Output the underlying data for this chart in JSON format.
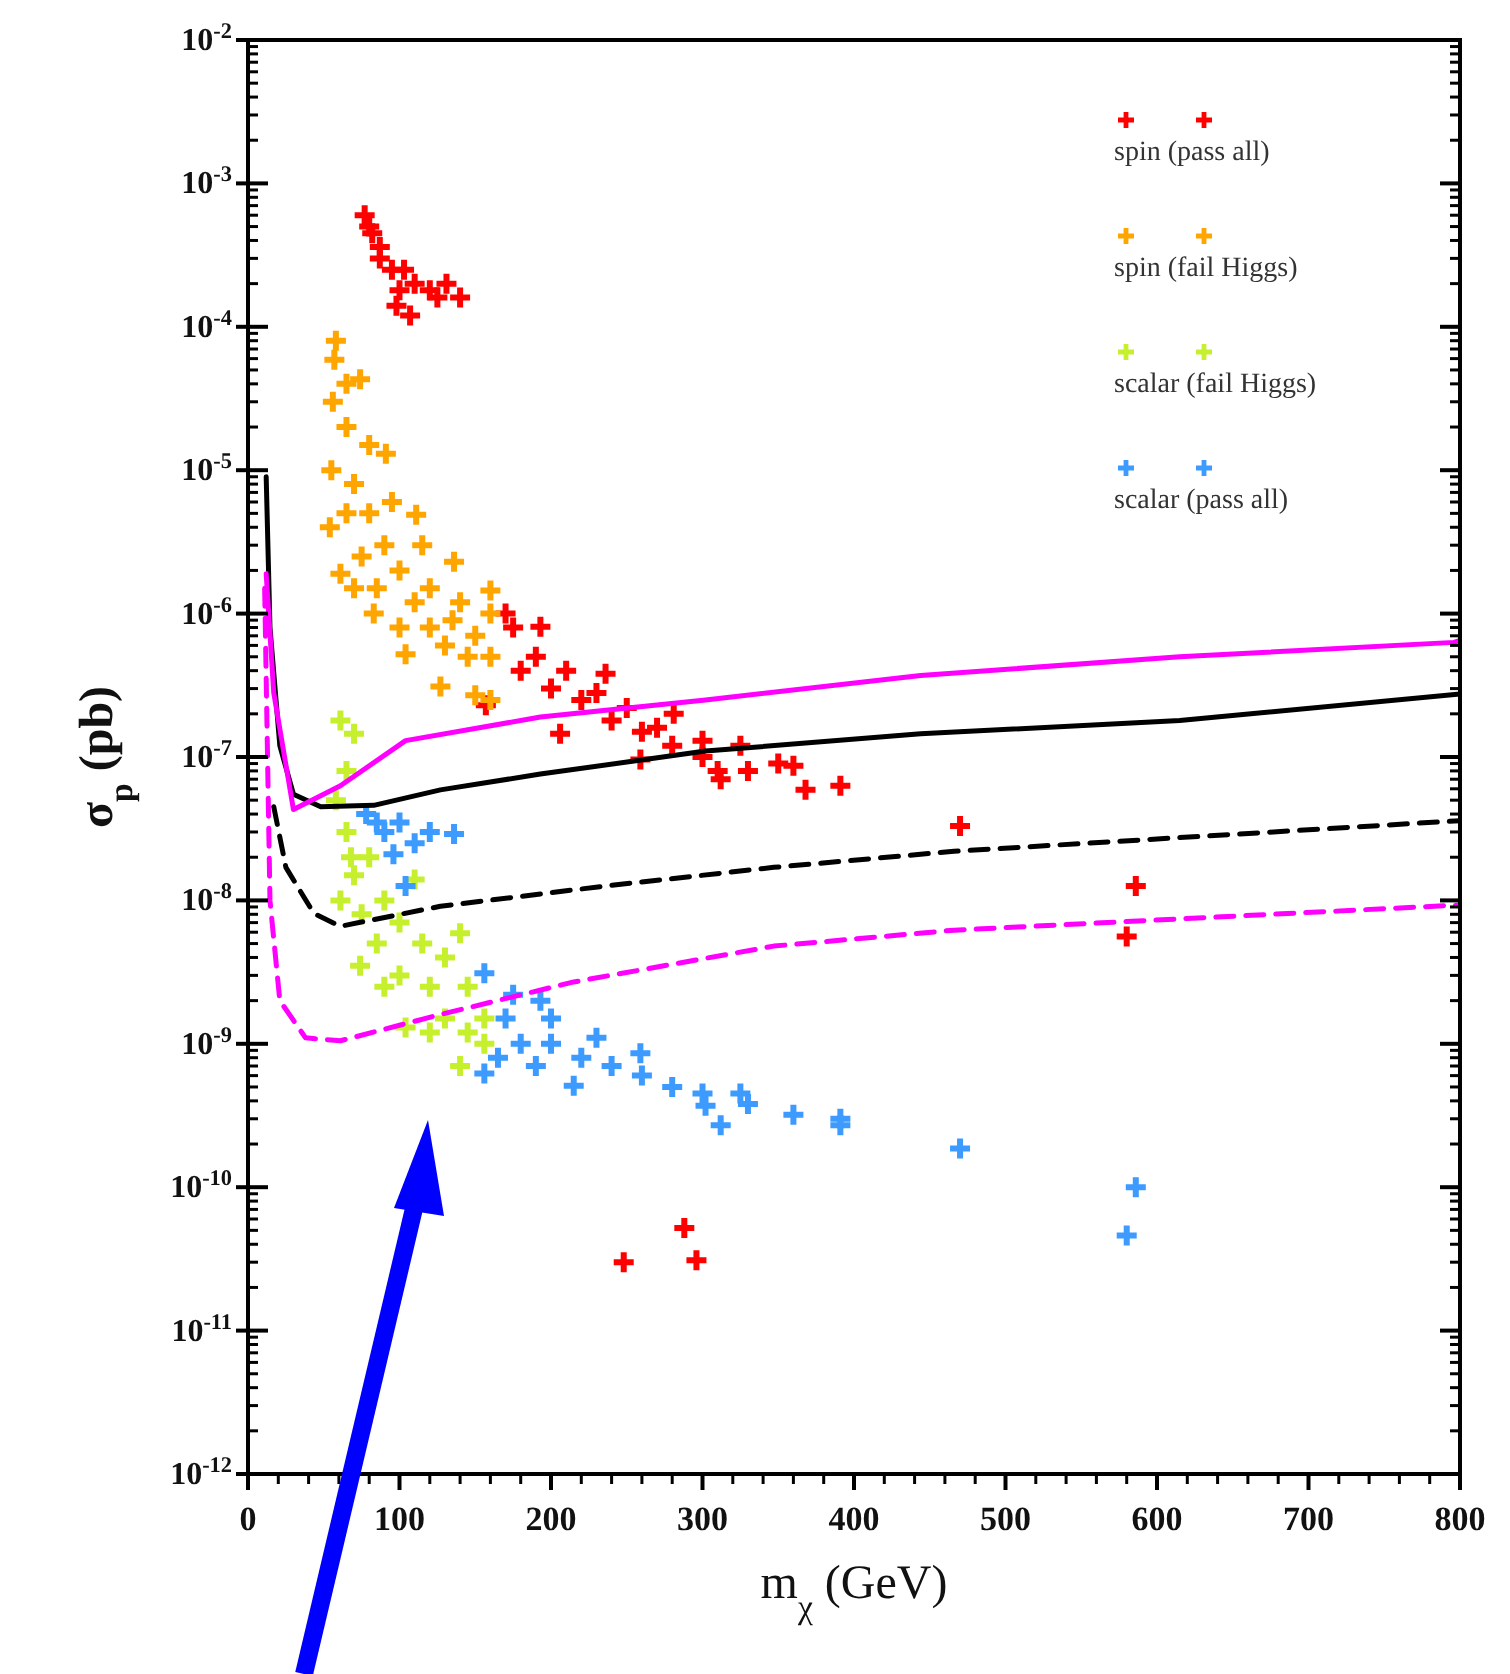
{
  "chart_data": {
    "type": "scatter",
    "xlabel": "m$_{χ}$ (GeV)",
    "ylabel": "σ$_{p}$ (pb)",
    "log": "y",
    "grid": false,
    "legend": "top right",
    "xlim": [
      0,
      800
    ],
    "xticks": [
      0,
      100,
      200,
      300,
      400,
      500,
      600,
      700,
      800
    ],
    "ylim": [
      1e-12,
      0.01
    ],
    "yticks": [
      {
        "value": 1e-12,
        "label": "10$^{-12}$"
      },
      {
        "value": 1e-11,
        "label": "10$^{-11}$"
      },
      {
        "value": 1e-10,
        "label": "10$^{-10}$"
      },
      {
        "value": 1e-09,
        "label": "10$^{-9}$"
      },
      {
        "value": 1e-08,
        "label": "10$^{-8}$"
      },
      {
        "value": 1e-07,
        "label": "10$^{-7}$"
      },
      {
        "value": 1e-06,
        "label": "10$^{-6}$"
      },
      {
        "value": 1e-05,
        "label": "10$^{-5}$"
      },
      {
        "value": 0.0001,
        "label": "10$^{-4}$"
      },
      {
        "value": 0.001,
        "label": "10$^{-3}$"
      },
      {
        "value": 0.01,
        "label": "10$^{-2}$"
      }
    ],
    "series": [
      {
        "name": "spin (pass all)",
        "marker": "cross",
        "color": "#ff0000",
        "x": [
          77,
          80,
          87,
          103,
          140,
          131,
          107,
          98,
          87,
          95,
          110,
          120,
          100,
          82,
          125,
          193,
          236,
          281,
          325,
          360,
          391,
          368,
          312,
          259,
          206,
          157,
          175,
          180,
          200,
          220,
          240,
          260,
          280,
          300,
          330,
          190,
          210,
          230,
          250,
          270,
          300,
          350,
          170,
          310,
          470,
          586,
          580,
          248,
          288,
          296
        ],
        "values": [
          0.0006,
          0.0005,
          0.00036,
          0.00025,
          0.00016,
          0.0002,
          0.00012,
          0.00014,
          0.0003,
          0.00025,
          0.0002,
          0.00018,
          0.00018,
          0.00045,
          0.00016,
          8.1e-07,
          3.8e-07,
          2e-07,
          1.2e-07,
          8.7e-08,
          6.3e-08,
          5.9e-08,
          7e-08,
          9.6e-08,
          1.45e-07,
          2.3e-07,
          8e-07,
          4e-07,
          3e-07,
          2.5e-07,
          1.8e-07,
          1.5e-07,
          1.2e-07,
          1e-07,
          8e-08,
          5e-07,
          4e-07,
          2.8e-07,
          2.2e-07,
          1.6e-07,
          1.3e-07,
          9e-08,
          1e-06,
          8e-08,
          3.3e-08,
          1.26e-08,
          5.6e-09,
          3e-11,
          5.2e-11,
          3.1e-11
        ]
      },
      {
        "name": "spin (fail Higgs)",
        "marker": "cross",
        "color": "#ffa500",
        "x": [
          58,
          57,
          56,
          55,
          54,
          61,
          70,
          83,
          104,
          127,
          150,
          160,
          160,
          160,
          160,
          136,
          111,
          91,
          74,
          65,
          70,
          80,
          90,
          100,
          110,
          120,
          130,
          140,
          145,
          75,
          65,
          85,
          100,
          120,
          95,
          80,
          65,
          115,
          135,
          150
        ],
        "values": [
          8e-05,
          5.9e-05,
          3e-05,
          1e-05,
          4e-06,
          1.9e-06,
          1.5e-06,
          1e-06,
          5.2e-07,
          3.1e-07,
          2.7e-07,
          2.5e-07,
          5e-07,
          1e-06,
          1.45e-06,
          2.3e-06,
          4.9e-06,
          1.3e-05,
          4.3e-05,
          2e-05,
          8e-06,
          5e-06,
          3e-06,
          2e-06,
          1.2e-06,
          8e-07,
          6e-07,
          1.2e-06,
          5e-07,
          2.5e-06,
          5e-06,
          1.5e-06,
          8e-07,
          1.5e-06,
          6e-06,
          1.5e-05,
          4e-05,
          3e-06,
          9e-07,
          7e-07
        ]
      },
      {
        "name": "scalar (fail Higgs)",
        "marker": "cross",
        "color": "#c6f02e",
        "x": [
          61,
          58,
          61,
          74,
          104,
          140,
          70,
          110,
          140,
          156,
          156,
          65,
          65,
          70,
          80,
          75,
          90,
          85,
          100,
          100,
          115,
          120,
          130,
          130,
          145,
          145,
          120,
          90,
          68
        ],
        "values": [
          1.8e-07,
          5e-08,
          1e-08,
          3.5e-09,
          1.3e-09,
          7e-10,
          1.45e-07,
          1.4e-08,
          5.9e-09,
          1.5e-09,
          1e-09,
          8e-08,
          3e-08,
          1.5e-08,
          2e-08,
          8e-09,
          1e-08,
          5e-09,
          7e-09,
          3e-09,
          5e-09,
          2.5e-09,
          4e-09,
          1.5e-09,
          2.5e-09,
          1.2e-09,
          1.2e-09,
          2.5e-09,
          2e-08
        ]
      },
      {
        "name": "scalar (pass all)",
        "marker": "cross",
        "color": "#3d9bff",
        "x": [
          78,
          136,
          104,
          96,
          90,
          110,
          120,
          100,
          85,
          156,
          193,
          259,
          325,
          391,
          156,
          215,
          302,
          391,
          170,
          180,
          200,
          220,
          240,
          260,
          280,
          300,
          330,
          360,
          175,
          200,
          230,
          165,
          190,
          312,
          470,
          586,
          580
        ],
        "values": [
          4e-08,
          2.9e-08,
          1.26e-08,
          2.1e-08,
          3e-08,
          2.5e-08,
          3e-08,
          3.5e-08,
          3.5e-08,
          3.1e-09,
          2e-09,
          8.6e-10,
          4.5e-10,
          3e-10,
          6.2e-10,
          5.1e-10,
          3.7e-10,
          2.7e-10,
          1.5e-09,
          1e-09,
          1e-09,
          8e-10,
          7e-10,
          6e-10,
          5e-10,
          4.5e-10,
          3.8e-10,
          3.2e-10,
          2.2e-09,
          1.5e-09,
          1.1e-09,
          8e-10,
          7e-10,
          2.7e-10,
          1.86e-10,
          1e-10,
          4.6e-11
        ]
      },
      {
        "type": "line",
        "line_style": "solid",
        "color": "#000000",
        "x": [
          12,
          14.5,
          21,
          30,
          48,
          83,
          127,
          193,
          302,
          444,
          615,
          800
        ],
        "values": [
          9e-06,
          8e-07,
          1.2e-07,
          5.5e-08,
          4.5e-08,
          4.6e-08,
          5.9e-08,
          7.6e-08,
          1.1e-07,
          1.45e-07,
          1.8e-07,
          2.75e-07
        ]
      },
      {
        "type": "line",
        "line_style": "solid",
        "color": "#ff00ff",
        "x": [
          12,
          17,
          30,
          61,
          104,
          193,
          302,
          444,
          615,
          796,
          800
        ],
        "values": [
          1.9e-06,
          2.8e-07,
          4.3e-08,
          6.3e-08,
          1.3e-07,
          1.9e-07,
          2.5e-07,
          3.7e-07,
          5e-07,
          6.3e-07,
          6.5e-07
        ]
      },
      {
        "type": "line",
        "line_style": "dashed",
        "color": "#000000",
        "x": [
          17,
          25,
          43.5,
          61,
          127,
          236,
          347,
          466,
          800
        ],
        "values": [
          4.5e-08,
          1.7e-08,
          8.1e-09,
          6.6e-09,
          9.1e-09,
          1.26e-08,
          1.7e-08,
          2.2e-08,
          3.6e-08
        ]
      },
      {
        "type": "line",
        "line_style": "dashed",
        "color": "#ff00ff",
        "x": [
          11,
          14.5,
          21,
          38,
          61,
          127,
          215,
          347,
          466,
          800
        ],
        "values": [
          1.5e-06,
          1e-08,
          2e-09,
          1.1e-09,
          1.05e-09,
          1.6e-09,
          2.7e-09,
          4.8e-09,
          6.2e-09,
          9.3e-09
        ]
      }
    ]
  }
}
